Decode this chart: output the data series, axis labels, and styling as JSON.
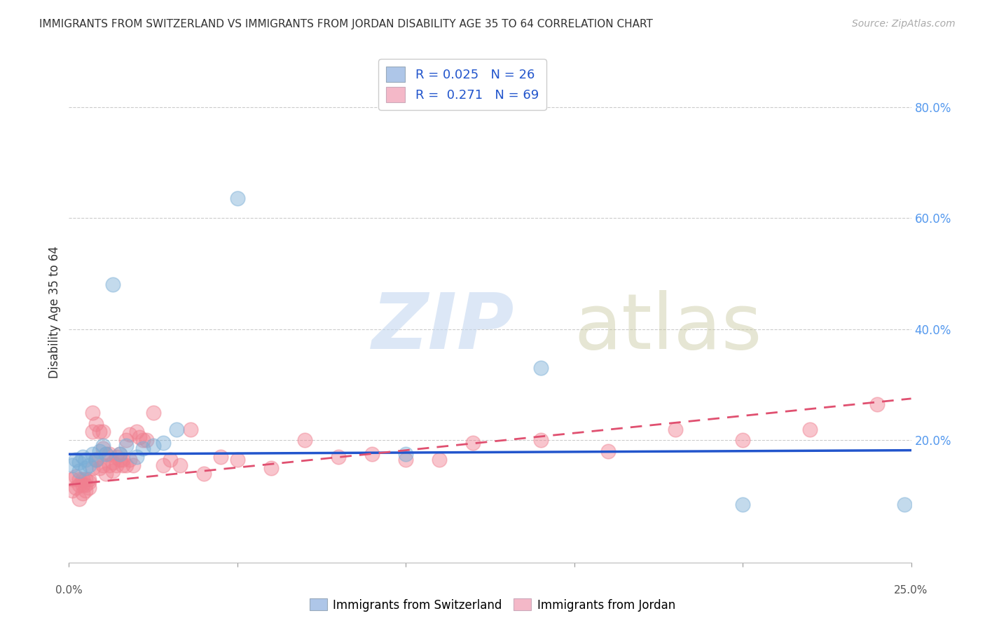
{
  "title": "IMMIGRANTS FROM SWITZERLAND VS IMMIGRANTS FROM JORDAN DISABILITY AGE 35 TO 64 CORRELATION CHART",
  "source": "Source: ZipAtlas.com",
  "ylabel": "Disability Age 35 to 64",
  "right_yticks": [
    "80.0%",
    "60.0%",
    "40.0%",
    "20.0%"
  ],
  "right_ytick_vals": [
    0.8,
    0.6,
    0.4,
    0.2
  ],
  "xlim": [
    0.0,
    0.25
  ],
  "ylim": [
    -0.02,
    0.88
  ],
  "legend1_label": "R = 0.025   N = 26",
  "legend2_label": "R =  0.271   N = 69",
  "legend1_color": "#aec6e8",
  "legend2_color": "#f4b8c8",
  "series1_name": "Immigrants from Switzerland",
  "series2_name": "Immigrants from Jordan",
  "series1_color": "#7aaed6",
  "series2_color": "#f08090",
  "line1_color": "#2255cc",
  "line2_color": "#e05070",
  "background_color": "#ffffff",
  "grid_color": "#cccccc",
  "swiss_x": [
    0.001,
    0.002,
    0.003,
    0.003,
    0.004,
    0.005,
    0.005,
    0.006,
    0.007,
    0.008,
    0.009,
    0.01,
    0.011,
    0.013,
    0.015,
    0.017,
    0.02,
    0.022,
    0.025,
    0.028,
    0.032,
    0.05,
    0.1,
    0.14,
    0.2,
    0.248
  ],
  "swiss_y": [
    0.155,
    0.165,
    0.16,
    0.145,
    0.17,
    0.15,
    0.165,
    0.155,
    0.175,
    0.165,
    0.18,
    0.19,
    0.175,
    0.48,
    0.175,
    0.19,
    0.17,
    0.185,
    0.19,
    0.195,
    0.22,
    0.635,
    0.175,
    0.33,
    0.085,
    0.085
  ],
  "jordan_x": [
    0.001,
    0.001,
    0.002,
    0.002,
    0.003,
    0.003,
    0.003,
    0.004,
    0.004,
    0.004,
    0.005,
    0.005,
    0.005,
    0.006,
    0.006,
    0.006,
    0.007,
    0.007,
    0.007,
    0.008,
    0.008,
    0.008,
    0.009,
    0.009,
    0.01,
    0.01,
    0.01,
    0.011,
    0.011,
    0.012,
    0.012,
    0.013,
    0.013,
    0.014,
    0.014,
    0.015,
    0.015,
    0.016,
    0.016,
    0.017,
    0.017,
    0.018,
    0.018,
    0.019,
    0.02,
    0.021,
    0.022,
    0.023,
    0.025,
    0.028,
    0.03,
    0.033,
    0.036,
    0.04,
    0.045,
    0.05,
    0.06,
    0.07,
    0.08,
    0.09,
    0.1,
    0.11,
    0.12,
    0.14,
    0.16,
    0.18,
    0.2,
    0.22,
    0.24
  ],
  "jordan_y": [
    0.11,
    0.13,
    0.115,
    0.135,
    0.095,
    0.12,
    0.13,
    0.105,
    0.12,
    0.13,
    0.11,
    0.13,
    0.12,
    0.115,
    0.125,
    0.13,
    0.25,
    0.215,
    0.15,
    0.165,
    0.23,
    0.165,
    0.15,
    0.215,
    0.155,
    0.215,
    0.185,
    0.14,
    0.175,
    0.175,
    0.155,
    0.16,
    0.145,
    0.17,
    0.155,
    0.165,
    0.175,
    0.155,
    0.165,
    0.155,
    0.2,
    0.21,
    0.165,
    0.155,
    0.215,
    0.205,
    0.2,
    0.2,
    0.25,
    0.155,
    0.165,
    0.155,
    0.22,
    0.14,
    0.17,
    0.165,
    0.15,
    0.2,
    0.17,
    0.175,
    0.165,
    0.165,
    0.195,
    0.2,
    0.18,
    0.22,
    0.2,
    0.22,
    0.265
  ]
}
